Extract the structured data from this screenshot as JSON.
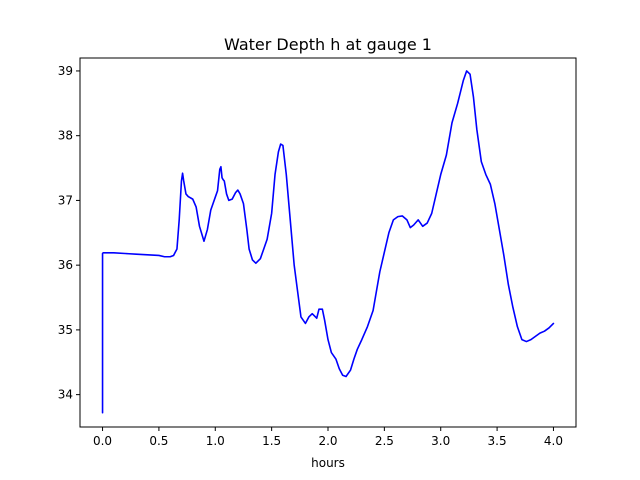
{
  "chart_data": {
    "type": "line",
    "title": "Water Depth h at gauge 1",
    "xlabel": "hours",
    "ylabel": "",
    "xlim": [
      -0.2,
      4.2
    ],
    "ylim": [
      33.5,
      39.2
    ],
    "xticks": [
      0.0,
      0.5,
      1.0,
      1.5,
      2.0,
      2.5,
      3.0,
      3.5,
      4.0
    ],
    "xtick_labels": [
      "0.0",
      "0.5",
      "1.0",
      "1.5",
      "2.0",
      "2.5",
      "3.0",
      "3.5",
      "4.0"
    ],
    "yticks": [
      34,
      35,
      36,
      37,
      38,
      39
    ],
    "ytick_labels": [
      "34",
      "35",
      "36",
      "37",
      "38",
      "39"
    ],
    "grid": false,
    "legend": null,
    "series": [
      {
        "color": "#0000ff",
        "x": [
          0.0,
          0.0,
          0.005,
          0.1,
          0.2,
          0.3,
          0.4,
          0.5,
          0.55,
          0.6,
          0.63,
          0.66,
          0.68,
          0.7,
          0.71,
          0.72,
          0.74,
          0.76,
          0.8,
          0.83,
          0.86,
          0.9,
          0.93,
          0.96,
          0.98,
          1.0,
          1.02,
          1.04,
          1.05,
          1.06,
          1.07,
          1.08,
          1.1,
          1.12,
          1.15,
          1.18,
          1.2,
          1.22,
          1.25,
          1.28,
          1.3,
          1.33,
          1.36,
          1.4,
          1.43,
          1.46,
          1.5,
          1.53,
          1.56,
          1.58,
          1.6,
          1.63,
          1.66,
          1.7,
          1.73,
          1.76,
          1.8,
          1.83,
          1.86,
          1.9,
          1.92,
          1.95,
          1.97,
          2.0,
          2.03,
          2.07,
          2.1,
          2.13,
          2.16,
          2.2,
          2.23,
          2.26,
          2.3,
          2.35,
          2.4,
          2.43,
          2.46,
          2.5,
          2.54,
          2.58,
          2.62,
          2.66,
          2.7,
          2.73,
          2.76,
          2.8,
          2.84,
          2.88,
          2.92,
          2.96,
          3.0,
          3.05,
          3.1,
          3.15,
          3.2,
          3.23,
          3.26,
          3.29,
          3.32,
          3.36,
          3.4,
          3.44,
          3.48,
          3.52,
          3.56,
          3.6,
          3.64,
          3.68,
          3.72,
          3.76,
          3.8,
          3.84,
          3.88,
          3.92,
          3.96,
          4.0
        ],
        "y": [
          33.72,
          36.18,
          36.19,
          36.19,
          36.18,
          36.17,
          36.16,
          36.15,
          36.13,
          36.13,
          36.15,
          36.25,
          36.7,
          37.3,
          37.42,
          37.3,
          37.1,
          37.06,
          37.02,
          36.9,
          36.6,
          36.37,
          36.55,
          36.85,
          36.95,
          37.05,
          37.15,
          37.48,
          37.52,
          37.35,
          37.32,
          37.3,
          37.1,
          37.0,
          37.02,
          37.12,
          37.16,
          37.1,
          36.95,
          36.55,
          36.25,
          36.08,
          36.03,
          36.1,
          36.25,
          36.4,
          36.8,
          37.4,
          37.75,
          37.87,
          37.85,
          37.4,
          36.8,
          36.0,
          35.6,
          35.2,
          35.1,
          35.2,
          35.25,
          35.18,
          35.32,
          35.32,
          35.15,
          34.85,
          34.65,
          34.55,
          34.4,
          34.3,
          34.28,
          34.38,
          34.55,
          34.7,
          34.85,
          35.05,
          35.3,
          35.6,
          35.9,
          36.2,
          36.5,
          36.7,
          36.75,
          36.76,
          36.7,
          36.58,
          36.62,
          36.7,
          36.6,
          36.65,
          36.8,
          37.1,
          37.4,
          37.7,
          38.2,
          38.5,
          38.85,
          39.0,
          38.95,
          38.6,
          38.1,
          37.6,
          37.4,
          37.25,
          36.95,
          36.55,
          36.15,
          35.7,
          35.35,
          35.05,
          34.85,
          34.82,
          34.85,
          34.9,
          34.95,
          34.98,
          35.03,
          35.1
        ]
      }
    ]
  }
}
